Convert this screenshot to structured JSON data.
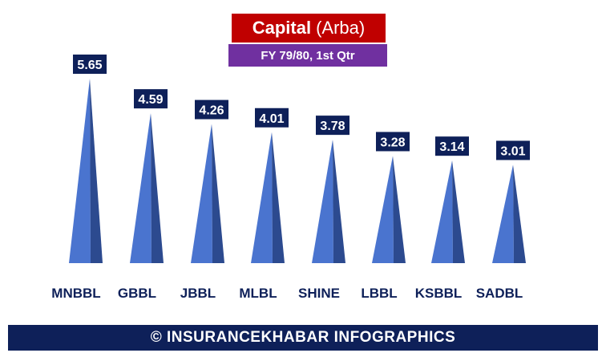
{
  "title": {
    "main": "Capital",
    "unit": "(Arba)"
  },
  "subtitle": "FY 79/80, 1st Qtr",
  "footer": "© INSURANCEKHABAR INFOGRAPHICS",
  "colors": {
    "title_bg": "#c00000",
    "subtitle_bg": "#7030a0",
    "pyramid_light": "#4a74cf",
    "pyramid_dark": "#2c4a8f",
    "label_bg": "#0e2059",
    "category_text": "#0e2059",
    "footer_bg": "#0e2059"
  },
  "chart_data": {
    "type": "bar",
    "mark": "pyramid",
    "title": "Capital (Arba)",
    "subtitle": "FY 79/80, 1st Qtr",
    "categories": [
      "MNBBL",
      "GBBL",
      "JBBL",
      "MLBL",
      "SHINE",
      "LBBL",
      "KSBBL",
      "SADBL"
    ],
    "values": [
      5.65,
      4.59,
      4.26,
      4.01,
      3.78,
      3.28,
      3.14,
      3.01
    ],
    "value_labels": [
      "5.65",
      "4.59",
      "4.26",
      "4.01",
      "3.78",
      "3.28",
      "3.14",
      "3.01"
    ],
    "ylim": [
      0,
      5.65
    ],
    "grid": false,
    "legend": "none"
  }
}
